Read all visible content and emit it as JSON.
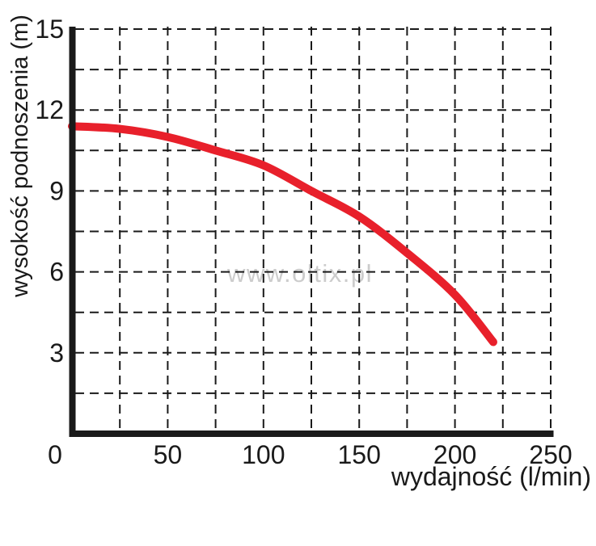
{
  "watermark": "www.oltix.pl",
  "colors": {
    "background": "#ffffff",
    "curve": "#e8202b",
    "axis": "#1a1a1a",
    "grid": "#1a1a1a",
    "text": "#1a1a1a",
    "watermark": "#cccccc"
  },
  "chart_data": {
    "type": "line",
    "title": "",
    "xlabel": "wydajność (l/min)",
    "ylabel": "wysokość podnoszenia (m)",
    "xlim": [
      0,
      250
    ],
    "ylim": [
      0,
      15
    ],
    "x_tick_labels": [
      0,
      50,
      100,
      150,
      200,
      250
    ],
    "y_tick_labels": [
      3,
      6,
      9,
      12,
      15
    ],
    "origin_label": "0",
    "x_grid_step": 25,
    "y_grid_step": 1.5,
    "grid_style": "dashed",
    "legend": "none",
    "series": [
      {
        "name": "pump-performance-curve",
        "x": [
          0,
          25,
          50,
          75,
          100,
          125,
          150,
          175,
          200,
          220
        ],
        "y": [
          11.4,
          11.3,
          11.0,
          10.5,
          9.95,
          9.0,
          8.05,
          6.7,
          5.15,
          3.4
        ]
      }
    ]
  }
}
